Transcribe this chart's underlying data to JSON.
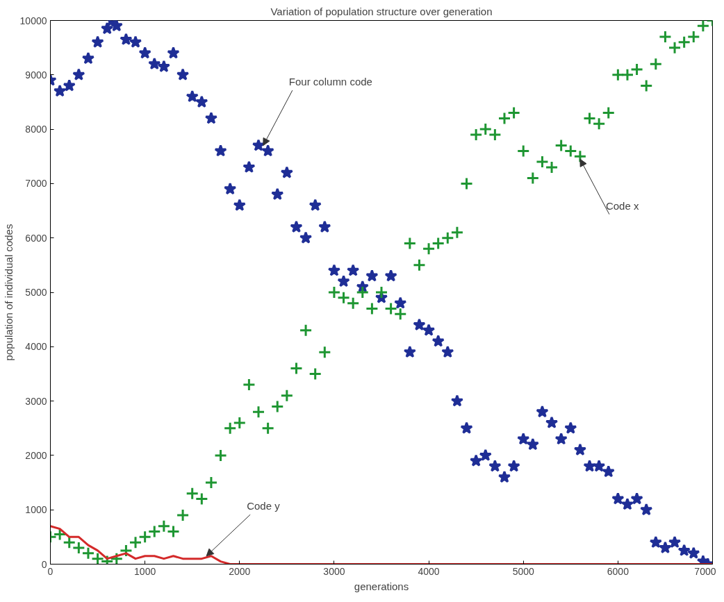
{
  "chart_data": {
    "type": "scatter",
    "title": "Variation of population structure over generation",
    "xlabel": "generations",
    "ylabel": "population of individual codes",
    "xlim": [
      0,
      7000
    ],
    "xticks": [
      0,
      1000,
      2000,
      3000,
      4000,
      5000,
      6000,
      7000
    ],
    "ylim": [
      0,
      10000
    ],
    "yticks": [
      0,
      1000,
      2000,
      3000,
      4000,
      5000,
      6000,
      7000,
      8000,
      9000,
      10000
    ],
    "grid": false,
    "series": [
      {
        "color": "#1f2e96",
        "marker": "star",
        "x": [
          0,
          100,
          200,
          300,
          400,
          500,
          600,
          650,
          700,
          800,
          900,
          1000,
          1100,
          1200,
          1300,
          1400,
          1500,
          1600,
          1700,
          1800,
          1900,
          2000,
          2100,
          2200,
          2300,
          2400,
          2500,
          2600,
          2700,
          2800,
          2900,
          3000,
          3100,
          3200,
          3300,
          3400,
          3500,
          3600,
          3700,
          3800,
          3900,
          4000,
          4100,
          4200,
          4300,
          4400,
          4500,
          4600,
          4700,
          4800,
          4900,
          5000,
          5100,
          5200,
          5300,
          5400,
          5500,
          5600,
          5700,
          5800,
          5900,
          6000,
          6100,
          6200,
          6300,
          6400,
          6500,
          6600,
          6700,
          6800,
          6900,
          6950
        ],
        "values": [
          8900,
          8700,
          8800,
          9000,
          9300,
          9600,
          9850,
          10000,
          9900,
          9650,
          9600,
          9400,
          9200,
          9150,
          9400,
          9000,
          8600,
          8500,
          8200,
          7600,
          6900,
          6600,
          7300,
          7700,
          7600,
          6800,
          7200,
          6200,
          6000,
          6600,
          6200,
          5400,
          5200,
          5400,
          5100,
          5300,
          4900,
          5300,
          4800,
          3900,
          4400,
          4300,
          4100,
          3900,
          3000,
          2500,
          1900,
          2000,
          1800,
          1600,
          1800,
          2300,
          2200,
          2800,
          2600,
          2300,
          2500,
          2100,
          1800,
          1800,
          1700,
          1200,
          1100,
          1200,
          1000,
          400,
          300,
          400,
          250,
          200,
          50,
          0
        ]
      },
      {
        "color": "#1e9632",
        "marker": "cross",
        "x": [
          0,
          100,
          200,
          300,
          400,
          500,
          600,
          700,
          800,
          900,
          1000,
          1100,
          1200,
          1300,
          1400,
          1500,
          1600,
          1700,
          1800,
          1900,
          2000,
          2100,
          2200,
          2300,
          2400,
          2500,
          2600,
          2700,
          2800,
          2900,
          3000,
          3100,
          3200,
          3300,
          3400,
          3500,
          3600,
          3700,
          3800,
          3900,
          4000,
          4100,
          4200,
          4300,
          4400,
          4500,
          4600,
          4700,
          4800,
          4900,
          5000,
          5100,
          5200,
          5300,
          5400,
          5500,
          5600,
          5700,
          5800,
          5900,
          6000,
          6100,
          6200,
          6300,
          6400,
          6500,
          6600,
          6700,
          6800,
          6900,
          7000
        ],
        "values": [
          500,
          550,
          400,
          300,
          200,
          100,
          50,
          100,
          250,
          400,
          500,
          600,
          700,
          600,
          900,
          1300,
          1200,
          1500,
          2000,
          2500,
          2600,
          3300,
          2800,
          2500,
          2900,
          3100,
          3600,
          4300,
          3500,
          3900,
          5000,
          4900,
          4800,
          5000,
          4700,
          5000,
          4700,
          4600,
          5900,
          5500,
          5800,
          5900,
          6000,
          6100,
          7000,
          7900,
          8000,
          7900,
          8200,
          8300,
          7600,
          7100,
          7400,
          7300,
          7700,
          7600,
          7500,
          8200,
          8100,
          8300,
          9000,
          9000,
          9100,
          8800,
          9200,
          9700,
          9500,
          9600,
          9700,
          9900,
          10000
        ]
      },
      {
        "type": "line",
        "color": "#d42a2a",
        "x": [
          0,
          100,
          200,
          300,
          400,
          500,
          600,
          700,
          800,
          900,
          1000,
          1100,
          1200,
          1300,
          1400,
          1500,
          1600,
          1700,
          1800,
          1900,
          7000
        ],
        "values": [
          700,
          650,
          500,
          500,
          350,
          250,
          100,
          150,
          200,
          100,
          150,
          150,
          100,
          150,
          100,
          100,
          100,
          150,
          50,
          0,
          0
        ]
      }
    ],
    "annotations": [
      {
        "text": "Four column code",
        "x": 2250,
        "y": 7700
      },
      {
        "text": "Code x",
        "x": 5600,
        "y": 7450
      },
      {
        "text": "Code y",
        "x": 1650,
        "y": 150
      }
    ]
  }
}
